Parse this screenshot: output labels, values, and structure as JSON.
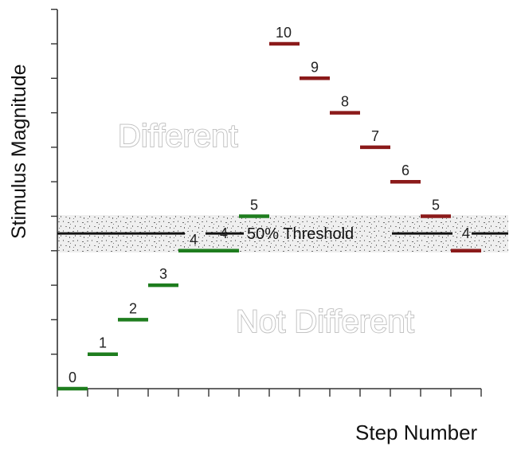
{
  "chart_data": {
    "type": "scatter",
    "title": "",
    "xlabel": "Step Number",
    "ylabel": "Stimulus Magnitude",
    "ylim": [
      0,
      11
    ],
    "grid": false,
    "threshold": {
      "label": "50% Threshold",
      "value": 4.5
    },
    "regions": {
      "above": "Different",
      "below": "Not Different"
    },
    "colors": {
      "increasing": "#1e7d1e",
      "decreasing": "#8b1a1a",
      "band": "#f0f0f0"
    },
    "series": [
      {
        "direction": "increasing",
        "x": [
          1,
          2,
          3,
          4,
          5,
          6,
          7
        ],
        "y": [
          0,
          1,
          2,
          3,
          4,
          4,
          5
        ],
        "labels": [
          "0",
          "1",
          "2",
          "3",
          "4",
          "4",
          "5"
        ],
        "label_positions": [
          "above",
          "above",
          "above",
          "above",
          "above",
          "inline",
          "above"
        ]
      },
      {
        "direction": "decreasing",
        "x": [
          8,
          9,
          10,
          11,
          12,
          13,
          14
        ],
        "y": [
          10,
          9,
          8,
          7,
          6,
          5,
          4
        ],
        "labels": [
          "10",
          "9",
          "8",
          "7",
          "6",
          "5",
          "4"
        ],
        "label_positions": [
          "above",
          "above",
          "above",
          "above",
          "above",
          "above",
          "inline"
        ]
      }
    ],
    "xtick_count": 15,
    "ytick_count": 11
  }
}
